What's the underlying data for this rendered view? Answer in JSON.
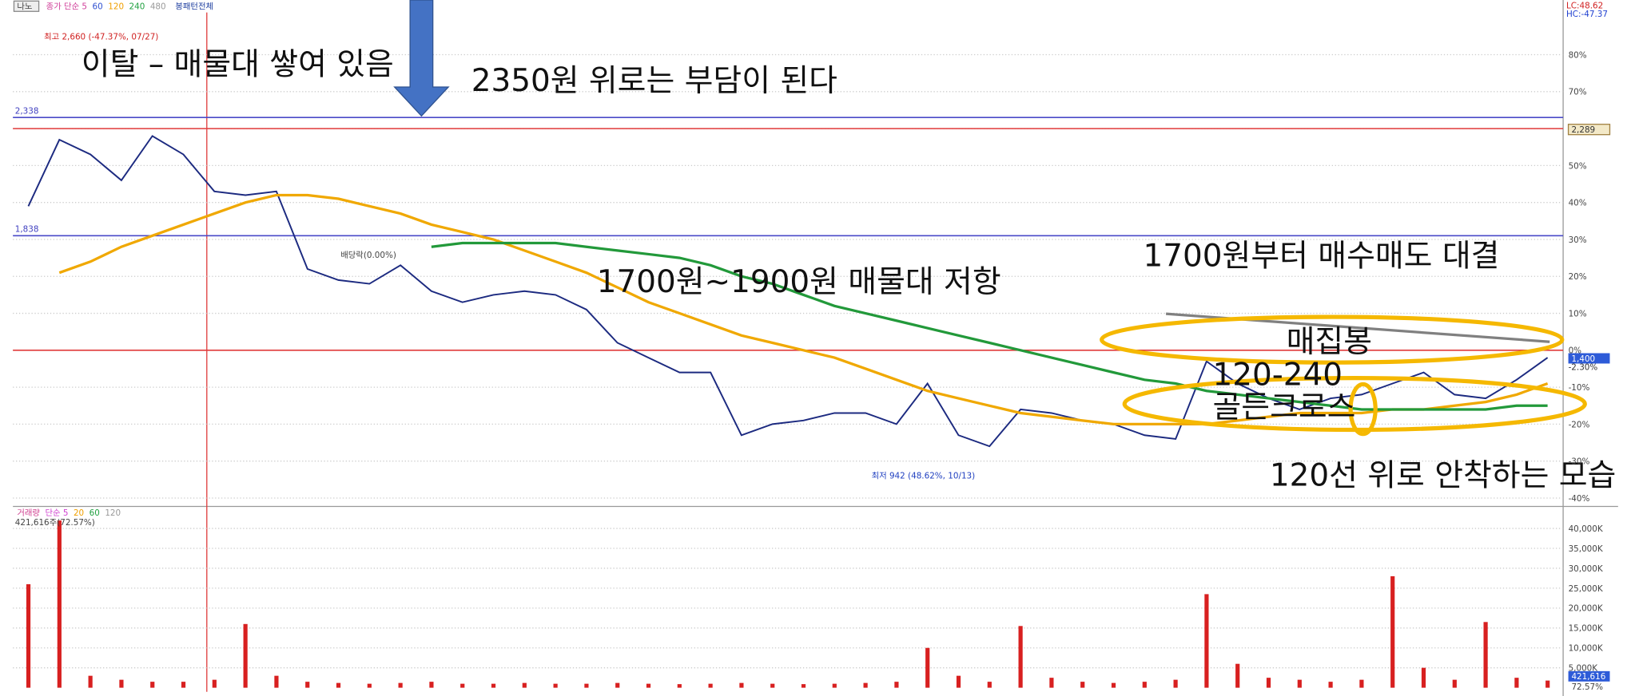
{
  "toolbar": {
    "mode": "나노",
    "pattern": "봉패턴전체"
  },
  "annotations": [
    "이탈 – 매물대 쌓여 있음",
    "2350원 위로는 부담이 된다",
    "1700원~1900원 매물대 저항",
    "1700원부터 매수매도 대결",
    "매집봉",
    "120-240",
    "골든크로스",
    "120선 위로 안착하는 모습"
  ],
  "chart_data": [
    {
      "type": "line",
      "categories": [
        null,
        null,
        null,
        null,
        null,
        null,
        null,
        null,
        null,
        null,
        null,
        null,
        null,
        null,
        null,
        null,
        null,
        null,
        null,
        null,
        null,
        null,
        null,
        null,
        null,
        null,
        null,
        null,
        null,
        null,
        null,
        null,
        null,
        null,
        null,
        null,
        null,
        null,
        null,
        null,
        null,
        null,
        null,
        null,
        null,
        null,
        null,
        null,
        null,
        null
      ],
      "series": [
        {
          "color": "#1c2a80",
          "values": [
            39,
            57,
            53,
            46,
            58,
            53,
            43,
            42,
            43,
            22,
            19,
            18,
            23,
            16,
            13,
            15,
            16,
            15,
            11,
            2,
            -2,
            -6,
            -6,
            -23,
            -20,
            -19,
            -17,
            -17,
            -20,
            -9,
            -23,
            -26,
            -16,
            -17,
            -19,
            -20,
            -23,
            -24,
            -3,
            -9,
            -13,
            -16,
            -13,
            -12,
            -9,
            -6,
            -12,
            -13,
            -8,
            -2
          ]
        },
        {
          "color": "#f0a800",
          "values": [
            null,
            21,
            24,
            28,
            31,
            34,
            37,
            40,
            42,
            42,
            41,
            39,
            37,
            34,
            32,
            30,
            27,
            24,
            21,
            17,
            13,
            10,
            7,
            4,
            2,
            0,
            -2,
            -5,
            -8,
            -11,
            -13,
            -15,
            -17,
            -18,
            -19,
            -20,
            -20,
            -20,
            -20,
            -19,
            -18,
            -17,
            -17,
            -17,
            -16,
            -16,
            -15,
            -14,
            -12,
            -9
          ]
        },
        {
          "color": "#22993a",
          "values": [
            null,
            null,
            null,
            null,
            null,
            null,
            null,
            null,
            null,
            null,
            null,
            null,
            null,
            28,
            29,
            29,
            29,
            29,
            28,
            27,
            26,
            25,
            23,
            20,
            18,
            15,
            12,
            10,
            8,
            6,
            4,
            2,
            0,
            -2,
            -4,
            -6,
            -8,
            -9,
            -11,
            -12,
            -13,
            -14,
            -15,
            -16,
            -16,
            -16,
            -16,
            -16,
            -15,
            -15
          ]
        }
      ],
      "ylim": [
        -42,
        92
      ],
      "yticks": [
        {
          "value": 80,
          "label": "80%"
        },
        {
          "value": 70,
          "label": "70%"
        },
        {
          "value": 60,
          "label": "60%"
        },
        {
          "value": 50,
          "label": "50%"
        },
        {
          "value": 40,
          "label": "40%"
        },
        {
          "value": 30,
          "label": "30%"
        },
        {
          "value": 20,
          "label": "20%"
        },
        {
          "value": 10,
          "label": "10%"
        },
        {
          "value": 0,
          "label": "0%"
        },
        {
          "value": -10,
          "label": "-10%"
        },
        {
          "value": -20,
          "label": "-20%"
        },
        {
          "value": -30,
          "label": "-30%"
        },
        {
          "value": -40,
          "label": "-40%"
        }
      ],
      "grid": true,
      "reference_lines": [
        {
          "value": 63,
          "color": "#4a4ac8"
        },
        {
          "value": 60,
          "color": "#e03a3a"
        },
        {
          "value": 31,
          "color": "#4a4ac8"
        },
        {
          "value": 0,
          "color": "#e03a3a"
        }
      ],
      "legend_items": [
        {
          "text": "종가 단순 5",
          "color": "#d0409a"
        },
        {
          "text": "60",
          "color": "#3050d0"
        },
        {
          "text": "120",
          "color": "#f0a000"
        },
        {
          "text": "240",
          "color": "#20a040"
        },
        {
          "text": "480",
          "color": "#999999"
        }
      ],
      "range_labels": {
        "lc": "LC:48.62",
        "hc": "HC:-47.37"
      },
      "price_tags": [
        "2,338",
        "1,838",
        "2,289",
        "1,400",
        "-2.30%"
      ],
      "notes": [
        "최고 2,660 (-47.37%, 07/27)",
        "배당락(0.00%)",
        "최저 942 (48.62%, 10/13)"
      ]
    },
    {
      "type": "bar",
      "categories": [
        null,
        null,
        null,
        null,
        null,
        null,
        null,
        null,
        null,
        null,
        null,
        null,
        null,
        null,
        null,
        null,
        null,
        null,
        null,
        null,
        null,
        null,
        null,
        null,
        null,
        null,
        null,
        null,
        null,
        null,
        null,
        null,
        null,
        null,
        null,
        null,
        null,
        null,
        null,
        null,
        null,
        null,
        null,
        null,
        null,
        null,
        null,
        null,
        null,
        null
      ],
      "values": [
        26000,
        42000,
        3000,
        2000,
        1500,
        1500,
        2000,
        16000,
        3000,
        1500,
        1200,
        1000,
        1200,
        1500,
        1000,
        1000,
        1200,
        1000,
        1000,
        1200,
        1000,
        900,
        1000,
        1200,
        1000,
        900,
        1000,
        1200,
        1500,
        10000,
        3000,
        1500,
        15500,
        2500,
        1500,
        1200,
        1500,
        2000,
        23500,
        6000,
        2500,
        2000,
        1500,
        2000,
        28000,
        5000,
        2000,
        16500,
        2500,
        1800
      ],
      "color": "#d82020",
      "ylim": [
        0,
        45000
      ],
      "yticks": [
        {
          "value": 5000,
          "label": "5,000K"
        },
        {
          "value": 10000,
          "label": "10,000K"
        },
        {
          "value": 15000,
          "label": "15,000K"
        },
        {
          "value": 20000,
          "label": "20,000K"
        },
        {
          "value": 25000,
          "label": "25,000K"
        },
        {
          "value": 30000,
          "label": "30,000K"
        },
        {
          "value": 35000,
          "label": "35,000K"
        },
        {
          "value": 40000,
          "label": "40,000K"
        }
      ],
      "grid": true,
      "legend_items": [
        {
          "text": "거래량",
          "color": "#d04090"
        },
        {
          "text": "단순 5",
          "color": "#d040d0"
        },
        {
          "text": "20",
          "color": "#f0a000"
        },
        {
          "text": "60",
          "color": "#20a040"
        },
        {
          "text": "120",
          "color": "#999999"
        }
      ],
      "caption": "421,616주(72.57%)",
      "tags": [
        "421,616",
        "72.57%"
      ]
    }
  ]
}
